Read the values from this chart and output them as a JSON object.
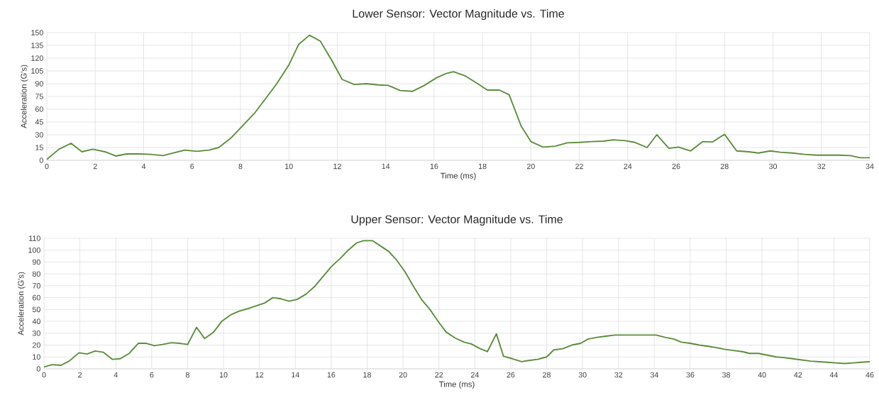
{
  "chart_data": [
    {
      "type": "line",
      "title": "Lower Sensor: Vector Magnitude vs. Time",
      "xlabel": "Time (ms)",
      "ylabel": "Acceleration (G's)",
      "grid": true,
      "line_style": "solid",
      "marker": "none",
      "xlim": [
        0,
        34
      ],
      "ylim": [
        0,
        150
      ],
      "xticks": [
        0,
        2,
        4,
        6,
        8,
        10,
        12,
        14,
        16,
        18,
        20,
        22,
        24,
        26,
        28,
        30,
        32,
        34
      ],
      "yticks": [
        0,
        15,
        30,
        45,
        60,
        75,
        90,
        105,
        120,
        135,
        150
      ],
      "x": [
        0,
        0.5,
        1.0,
        1.45,
        1.9,
        2.4,
        2.85,
        3.3,
        3.8,
        4.3,
        4.8,
        5.2,
        5.7,
        6.2,
        6.7,
        7.1,
        7.6,
        8.1,
        8.6,
        9.0,
        9.5,
        10.0,
        10.4,
        10.85,
        11.3,
        11.8,
        12.2,
        12.7,
        13.2,
        13.7,
        14.1,
        14.6,
        15.1,
        15.6,
        16.1,
        16.5,
        16.8,
        17.3,
        17.8,
        18.2,
        18.7,
        19.1,
        19.6,
        20.0,
        20.5,
        21.0,
        21.5,
        22.0,
        22.5,
        23.0,
        23.4,
        23.9,
        24.3,
        24.8,
        25.2,
        25.7,
        26.1,
        26.6,
        27.1,
        27.5,
        28.0,
        28.5,
        29.0,
        29.4,
        29.9,
        30.3,
        30.8,
        31.3,
        31.8,
        32.3,
        32.7,
        33.2,
        33.6,
        34.0
      ],
      "series": [
        {
          "color": "#5b8c3a",
          "values": [
            1,
            13,
            20,
            10,
            13,
            10,
            5,
            7.5,
            7.5,
            7,
            5.5,
            8.5,
            12,
            10.5,
            12,
            15,
            26,
            41,
            56,
            71,
            90,
            112,
            136,
            147,
            140,
            116,
            95,
            89,
            90,
            88.5,
            88,
            82,
            81,
            88,
            97,
            102,
            104,
            99,
            90,
            82.5,
            82.5,
            77,
            40,
            22,
            15.5,
            16.5,
            20.5,
            21,
            22,
            22.5,
            24,
            23,
            21,
            15,
            30,
            14,
            15.5,
            11,
            22,
            21.5,
            30.5,
            11,
            10,
            8.5,
            11,
            9.5,
            8.5,
            7,
            6,
            6,
            6,
            5.5,
            3,
            3
          ]
        }
      ]
    },
    {
      "type": "line",
      "title": "Upper Sensor: Vector Magnitude vs. Time",
      "xlabel": "Time (ms)",
      "ylabel": "Acceleration (G's)",
      "grid": true,
      "line_style": "solid",
      "marker": "none",
      "xlim": [
        0,
        46
      ],
      "ylim": [
        0,
        110
      ],
      "xticks": [
        0,
        2,
        4,
        6,
        8,
        10,
        12,
        14,
        16,
        18,
        20,
        22,
        24,
        26,
        28,
        30,
        32,
        34,
        36,
        38,
        40,
        42,
        44,
        46
      ],
      "yticks": [
        0,
        10,
        20,
        30,
        40,
        50,
        60,
        70,
        80,
        90,
        100,
        110
      ],
      "x": [
        0,
        0.45,
        0.95,
        1.4,
        1.95,
        2.4,
        2.85,
        3.3,
        3.8,
        4.25,
        4.75,
        5.25,
        5.7,
        6.15,
        6.6,
        7.1,
        7.55,
        8.0,
        8.5,
        8.95,
        9.45,
        9.9,
        10.4,
        10.85,
        11.3,
        11.8,
        12.3,
        12.75,
        13.2,
        13.65,
        14.1,
        14.6,
        15.05,
        15.5,
        16.0,
        16.5,
        16.95,
        17.4,
        17.8,
        18.3,
        18.75,
        19.2,
        19.65,
        20.1,
        20.6,
        21.05,
        21.5,
        22.0,
        22.4,
        22.9,
        23.4,
        23.8,
        24.3,
        24.7,
        25.2,
        25.6,
        26.1,
        26.6,
        27.0,
        27.5,
        28.0,
        28.4,
        28.9,
        29.4,
        29.9,
        30.3,
        30.8,
        31.3,
        31.8,
        32.2,
        32.7,
        33.2,
        33.6,
        34.1,
        34.6,
        35.1,
        35.5,
        36.0,
        36.5,
        37.0,
        37.4,
        37.9,
        38.4,
        38.9,
        39.3,
        39.8,
        40.3,
        40.8,
        41.2,
        41.7,
        42.2,
        42.7,
        43.2,
        43.6,
        44.1,
        44.6,
        45.1,
        45.5,
        46.0
      ],
      "series": [
        {
          "color": "#5b8c3a",
          "values": [
            1.5,
            3.5,
            3,
            6.5,
            13.5,
            12.5,
            15,
            14,
            8,
            8.5,
            13,
            21.5,
            21.5,
            19.5,
            20.5,
            22,
            21.5,
            20.5,
            35,
            25.5,
            31,
            40,
            45.5,
            48.5,
            50.5,
            53,
            55.5,
            60,
            59,
            57,
            58.5,
            63,
            69,
            77,
            86,
            93,
            100,
            106,
            108,
            108,
            103.5,
            99,
            91.5,
            82,
            69,
            58,
            50,
            39,
            31,
            26,
            22.5,
            21,
            17,
            14.5,
            29.5,
            10.5,
            8.5,
            6,
            7,
            8,
            10,
            16,
            17,
            20,
            21.5,
            25,
            26.5,
            27.5,
            28.5,
            28.5,
            28.5,
            28.5,
            28.5,
            28.5,
            26.5,
            25,
            22.5,
            21.5,
            20,
            19,
            18,
            16.5,
            15.5,
            14.5,
            13,
            13,
            11.5,
            10,
            9.5,
            8.5,
            7.5,
            6.5,
            6,
            5.5,
            5,
            4.5,
            5,
            5.5,
            6
          ]
        }
      ]
    }
  ]
}
